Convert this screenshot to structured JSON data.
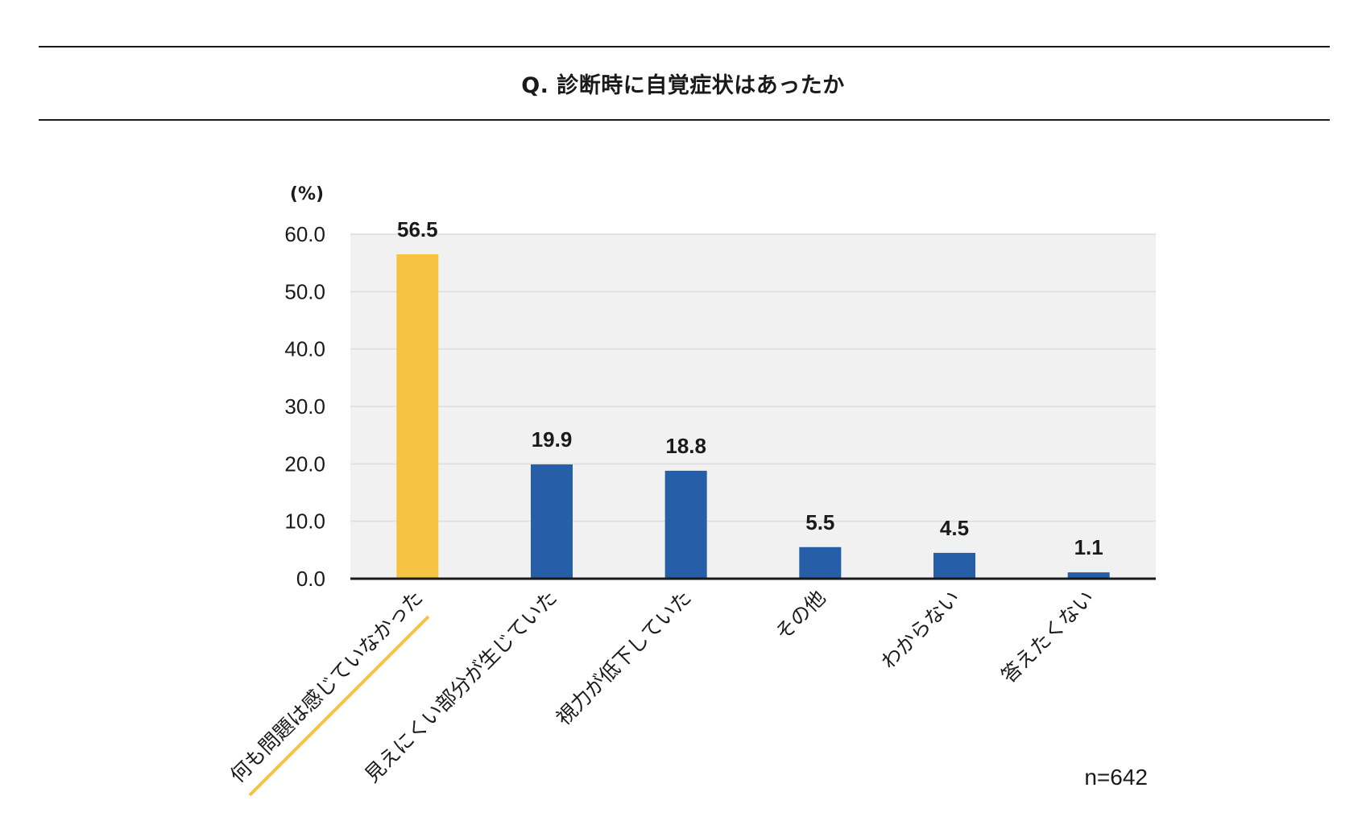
{
  "header": {
    "question": "Q.  診断時に自覚症状はあったか"
  },
  "colors": {
    "highlight": "#f5c242",
    "bar": "#265ea8",
    "plot_bg": "#f1f1f1",
    "grid": "#dcdcdc",
    "axis": "#1a1a1a"
  },
  "chart_data": {
    "type": "bar",
    "unit_label": "(%)",
    "categories": [
      "何も問題は感じていなかった",
      "見えにくい部分が生じていた",
      "視力が低下していた",
      "その他",
      "わからない",
      "答えたくない"
    ],
    "values": [
      56.5,
      19.9,
      18.8,
      5.5,
      4.5,
      1.1
    ],
    "value_labels": [
      "56.5",
      "19.9",
      "18.8",
      "5.5",
      "4.5",
      "1.1"
    ],
    "highlight_index": 0,
    "ylim": [
      0,
      60
    ],
    "yticks": [
      "0.0",
      "10.0",
      "20.0",
      "30.0",
      "40.0",
      "50.0",
      "60.0"
    ],
    "grid": true,
    "legend": "none"
  },
  "footer": {
    "sample_size": "n=642"
  }
}
